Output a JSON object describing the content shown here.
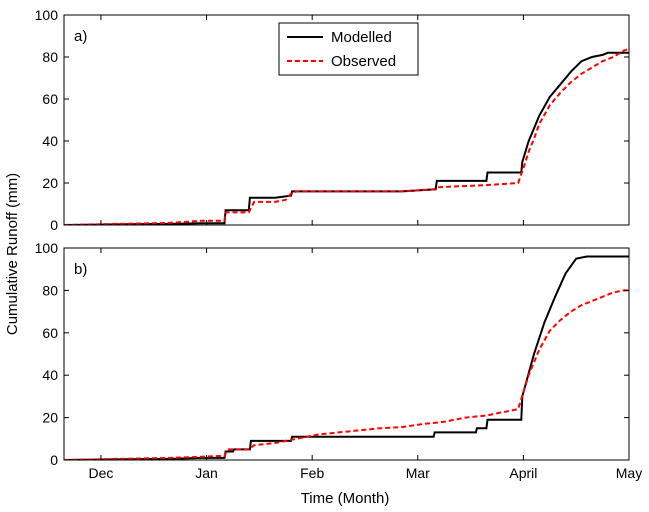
{
  "figure": {
    "ylabel": "Cumulative Runoff (mm)",
    "xlabel": "Time (Month)",
    "x_tick_labels": [
      "Dec",
      "Jan",
      "Feb",
      "Mar",
      "April",
      "May"
    ]
  },
  "colors": {
    "modelled": "#000000",
    "observed": "#ff0000"
  },
  "chart_data": [
    {
      "type": "line",
      "panel_label": "a)",
      "xlabel": "",
      "ylabel": "",
      "x_ticks": [
        "Dec",
        "Jan",
        "Feb",
        "Mar",
        "April",
        "May"
      ],
      "x_tick_values": [
        0.35,
        1.35,
        2.35,
        3.35,
        4.35,
        5.35
      ],
      "xlim": [
        0.0,
        5.35
      ],
      "ylim": [
        0,
        100
      ],
      "y_ticks": [
        0,
        20,
        40,
        60,
        80,
        100
      ],
      "legend": {
        "position": "top-center",
        "entries": [
          "Modelled",
          "Observed"
        ]
      },
      "series": [
        {
          "name": "Modelled",
          "style": "solid",
          "color": "#000000",
          "x": [
            0.0,
            0.5,
            1.0,
            1.3,
            1.52,
            1.53,
            1.75,
            1.76,
            2.0,
            2.15,
            2.16,
            2.4,
            2.8,
            3.2,
            3.52,
            3.53,
            4.0,
            4.01,
            4.33,
            4.34,
            4.4,
            4.45,
            4.5,
            4.6,
            4.7,
            4.8,
            4.9,
            5.0,
            5.1,
            5.15,
            5.3,
            5.35
          ],
          "y": [
            0,
            0.3,
            0.5,
            0.8,
            0.8,
            7,
            7,
            13,
            13,
            14,
            16,
            16,
            16,
            16,
            17,
            21,
            21,
            25,
            25,
            30,
            40,
            46,
            52,
            61,
            67,
            73,
            78,
            80,
            81,
            82,
            82,
            82
          ]
        },
        {
          "name": "Observed",
          "style": "dashed",
          "color": "#ff0000",
          "x": [
            0.0,
            0.5,
            1.0,
            1.3,
            1.52,
            1.53,
            1.75,
            1.8,
            2.0,
            2.1,
            2.15,
            2.2,
            2.5,
            2.8,
            3.2,
            3.5,
            3.55,
            4.0,
            4.3,
            4.35,
            4.4,
            4.45,
            4.5,
            4.6,
            4.7,
            4.8,
            4.9,
            5.0,
            5.1,
            5.2,
            5.3,
            5.35
          ],
          "y": [
            0,
            0.5,
            1,
            2,
            2,
            6,
            6,
            11,
            11,
            12,
            15,
            16,
            16,
            16,
            16,
            17,
            18,
            19,
            20,
            27,
            35,
            41,
            48,
            57,
            63,
            68,
            72,
            75,
            78,
            80,
            83,
            84
          ]
        }
      ]
    },
    {
      "type": "line",
      "panel_label": "b)",
      "xlabel": "Time (Month)",
      "ylabel": "",
      "x_ticks": [
        "Dec",
        "Jan",
        "Feb",
        "Mar",
        "April",
        "May"
      ],
      "x_tick_values": [
        0.35,
        1.35,
        2.35,
        3.35,
        4.35,
        5.35
      ],
      "xlim": [
        0.0,
        5.35
      ],
      "ylim": [
        0,
        100
      ],
      "y_ticks": [
        0,
        20,
        40,
        60,
        80,
        100
      ],
      "series": [
        {
          "name": "Modelled",
          "style": "solid",
          "color": "#000000",
          "x": [
            0.0,
            0.5,
            1.0,
            1.3,
            1.52,
            1.53,
            1.6,
            1.61,
            1.76,
            1.77,
            2.0,
            2.15,
            2.16,
            2.4,
            2.8,
            3.2,
            3.5,
            3.51,
            3.9,
            3.91,
            4.0,
            4.01,
            4.33,
            4.34,
            4.45,
            4.55,
            4.65,
            4.75,
            4.85,
            4.95,
            5.0,
            5.35
          ],
          "y": [
            0,
            0.3,
            0.5,
            1,
            1,
            4,
            4,
            5,
            5,
            9,
            9,
            9,
            11,
            11,
            11,
            11,
            11,
            13,
            13,
            15,
            15,
            19,
            19,
            30,
            50,
            65,
            77,
            88,
            95,
            96,
            96,
            96
          ]
        },
        {
          "name": "Observed",
          "style": "dashed",
          "color": "#ff0000",
          "x": [
            0.0,
            0.5,
            1.0,
            1.3,
            1.52,
            1.55,
            1.75,
            1.8,
            2.0,
            2.2,
            2.4,
            2.6,
            2.8,
            3.0,
            3.2,
            3.4,
            3.6,
            3.8,
            4.0,
            4.3,
            4.35,
            4.4,
            4.5,
            4.6,
            4.7,
            4.8,
            4.9,
            5.0,
            5.1,
            5.2,
            5.3,
            5.35
          ],
          "y": [
            0,
            0.5,
            1,
            1.5,
            2,
            5,
            5,
            7,
            8,
            10,
            12,
            13,
            14,
            15,
            15.5,
            17,
            18,
            20,
            21,
            24,
            32,
            40,
            52,
            61,
            66,
            70,
            73,
            75,
            77,
            79,
            80,
            80
          ]
        }
      ]
    }
  ]
}
